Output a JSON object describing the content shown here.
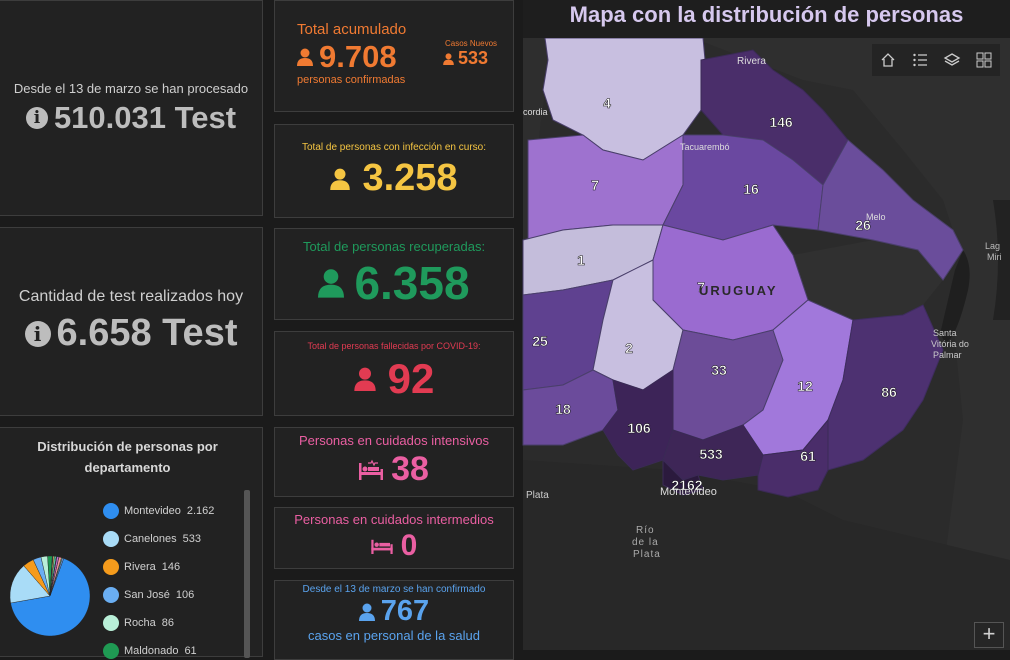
{
  "tests_total": {
    "caption": "Desde el 13 de marzo se han procesado",
    "value": "510.031 Test"
  },
  "tests_today": {
    "caption": "Cantidad de test realizados hoy",
    "value": "6.658 Test"
  },
  "distribution": {
    "title": "Distribución de personas por departamento",
    "items": [
      {
        "label": "Montevideo",
        "value": "2.162",
        "color": "#2f8ef0"
      },
      {
        "label": "Canelones",
        "value": "533",
        "color": "#a9dcf7"
      },
      {
        "label": "Rivera",
        "value": "146",
        "color": "#f59b1c"
      },
      {
        "label": "San José",
        "value": "106",
        "color": "#6aaef2"
      },
      {
        "label": "Rocha",
        "value": "86",
        "color": "#b9efd8"
      },
      {
        "label": "Maldonado",
        "value": "61",
        "color": "#1f9a53"
      }
    ]
  },
  "total_acumulado": {
    "title": "Total acumulado",
    "value": "9.708",
    "subtitle": "personas confirmadas",
    "new_label": "Casos Nuevos",
    "new_value": "533",
    "color": "#f07a32"
  },
  "en_curso": {
    "title": "Total de personas con infección en curso:",
    "value": "3.258",
    "color": "#f5c542"
  },
  "recuperadas": {
    "title": "Total de personas recuperadas:",
    "value": "6.358",
    "color": "#1f9a5c"
  },
  "fallecidas": {
    "title": "Total de personas fallecidas por COVID-19:",
    "value": "92",
    "color": "#e23b52"
  },
  "cuidados_intensivos": {
    "title": "Personas en cuidados intensivos",
    "value": "38",
    "color": "#ea5fa2"
  },
  "cuidados_intermedios": {
    "title": "Personas en cuidados intermedios",
    "value": "0",
    "color": "#ea5fa2"
  },
  "personal_salud": {
    "caption": "Desde el 13 de marzo se han confirmado",
    "value": "767",
    "subtitle": "casos en personal de la salud",
    "color": "#5aa3ee"
  },
  "map": {
    "title": "Mapa con la distribución de personas",
    "toolbar": [
      "home-icon",
      "legend-list-icon",
      "layers-icon",
      "basemap-gallery-icon"
    ],
    "zoom_label": "+",
    "places": {
      "rivera": "Rivera",
      "tacuarembo": "Tacuarembó",
      "melo": "Melo",
      "laguna": "Lag",
      "laguna2": "Miri",
      "santa": "Santa",
      "vitoria": "Vitória do",
      "palmar": "Palmar",
      "montevideo": "Montevideo",
      "plata": "Plata",
      "rio1": "Río",
      "rio2": "de la",
      "rio3": "Plata",
      "cordia": "cordia",
      "uruguay": "URUGUAY"
    },
    "departments": [
      {
        "id": "artigas",
        "value": "4"
      },
      {
        "id": "rivera",
        "value": "146"
      },
      {
        "id": "salto",
        "value": "7"
      },
      {
        "id": "tacuarembo",
        "value": "16"
      },
      {
        "id": "cerro-largo",
        "value": "26"
      },
      {
        "id": "paysandu",
        "value": "1"
      },
      {
        "id": "durazno",
        "value": "7"
      },
      {
        "id": "soriano",
        "value": "25"
      },
      {
        "id": "flores",
        "value": "2"
      },
      {
        "id": "florida",
        "value": "33"
      },
      {
        "id": "lavalleja",
        "value": "12"
      },
      {
        "id": "rocha",
        "value": "86"
      },
      {
        "id": "colonia",
        "value": "18"
      },
      {
        "id": "san-jose",
        "value": "106"
      },
      {
        "id": "canelones",
        "value": "533"
      },
      {
        "id": "maldonado",
        "value": "61"
      },
      {
        "id": "montevideo",
        "value": "2162"
      }
    ]
  }
}
